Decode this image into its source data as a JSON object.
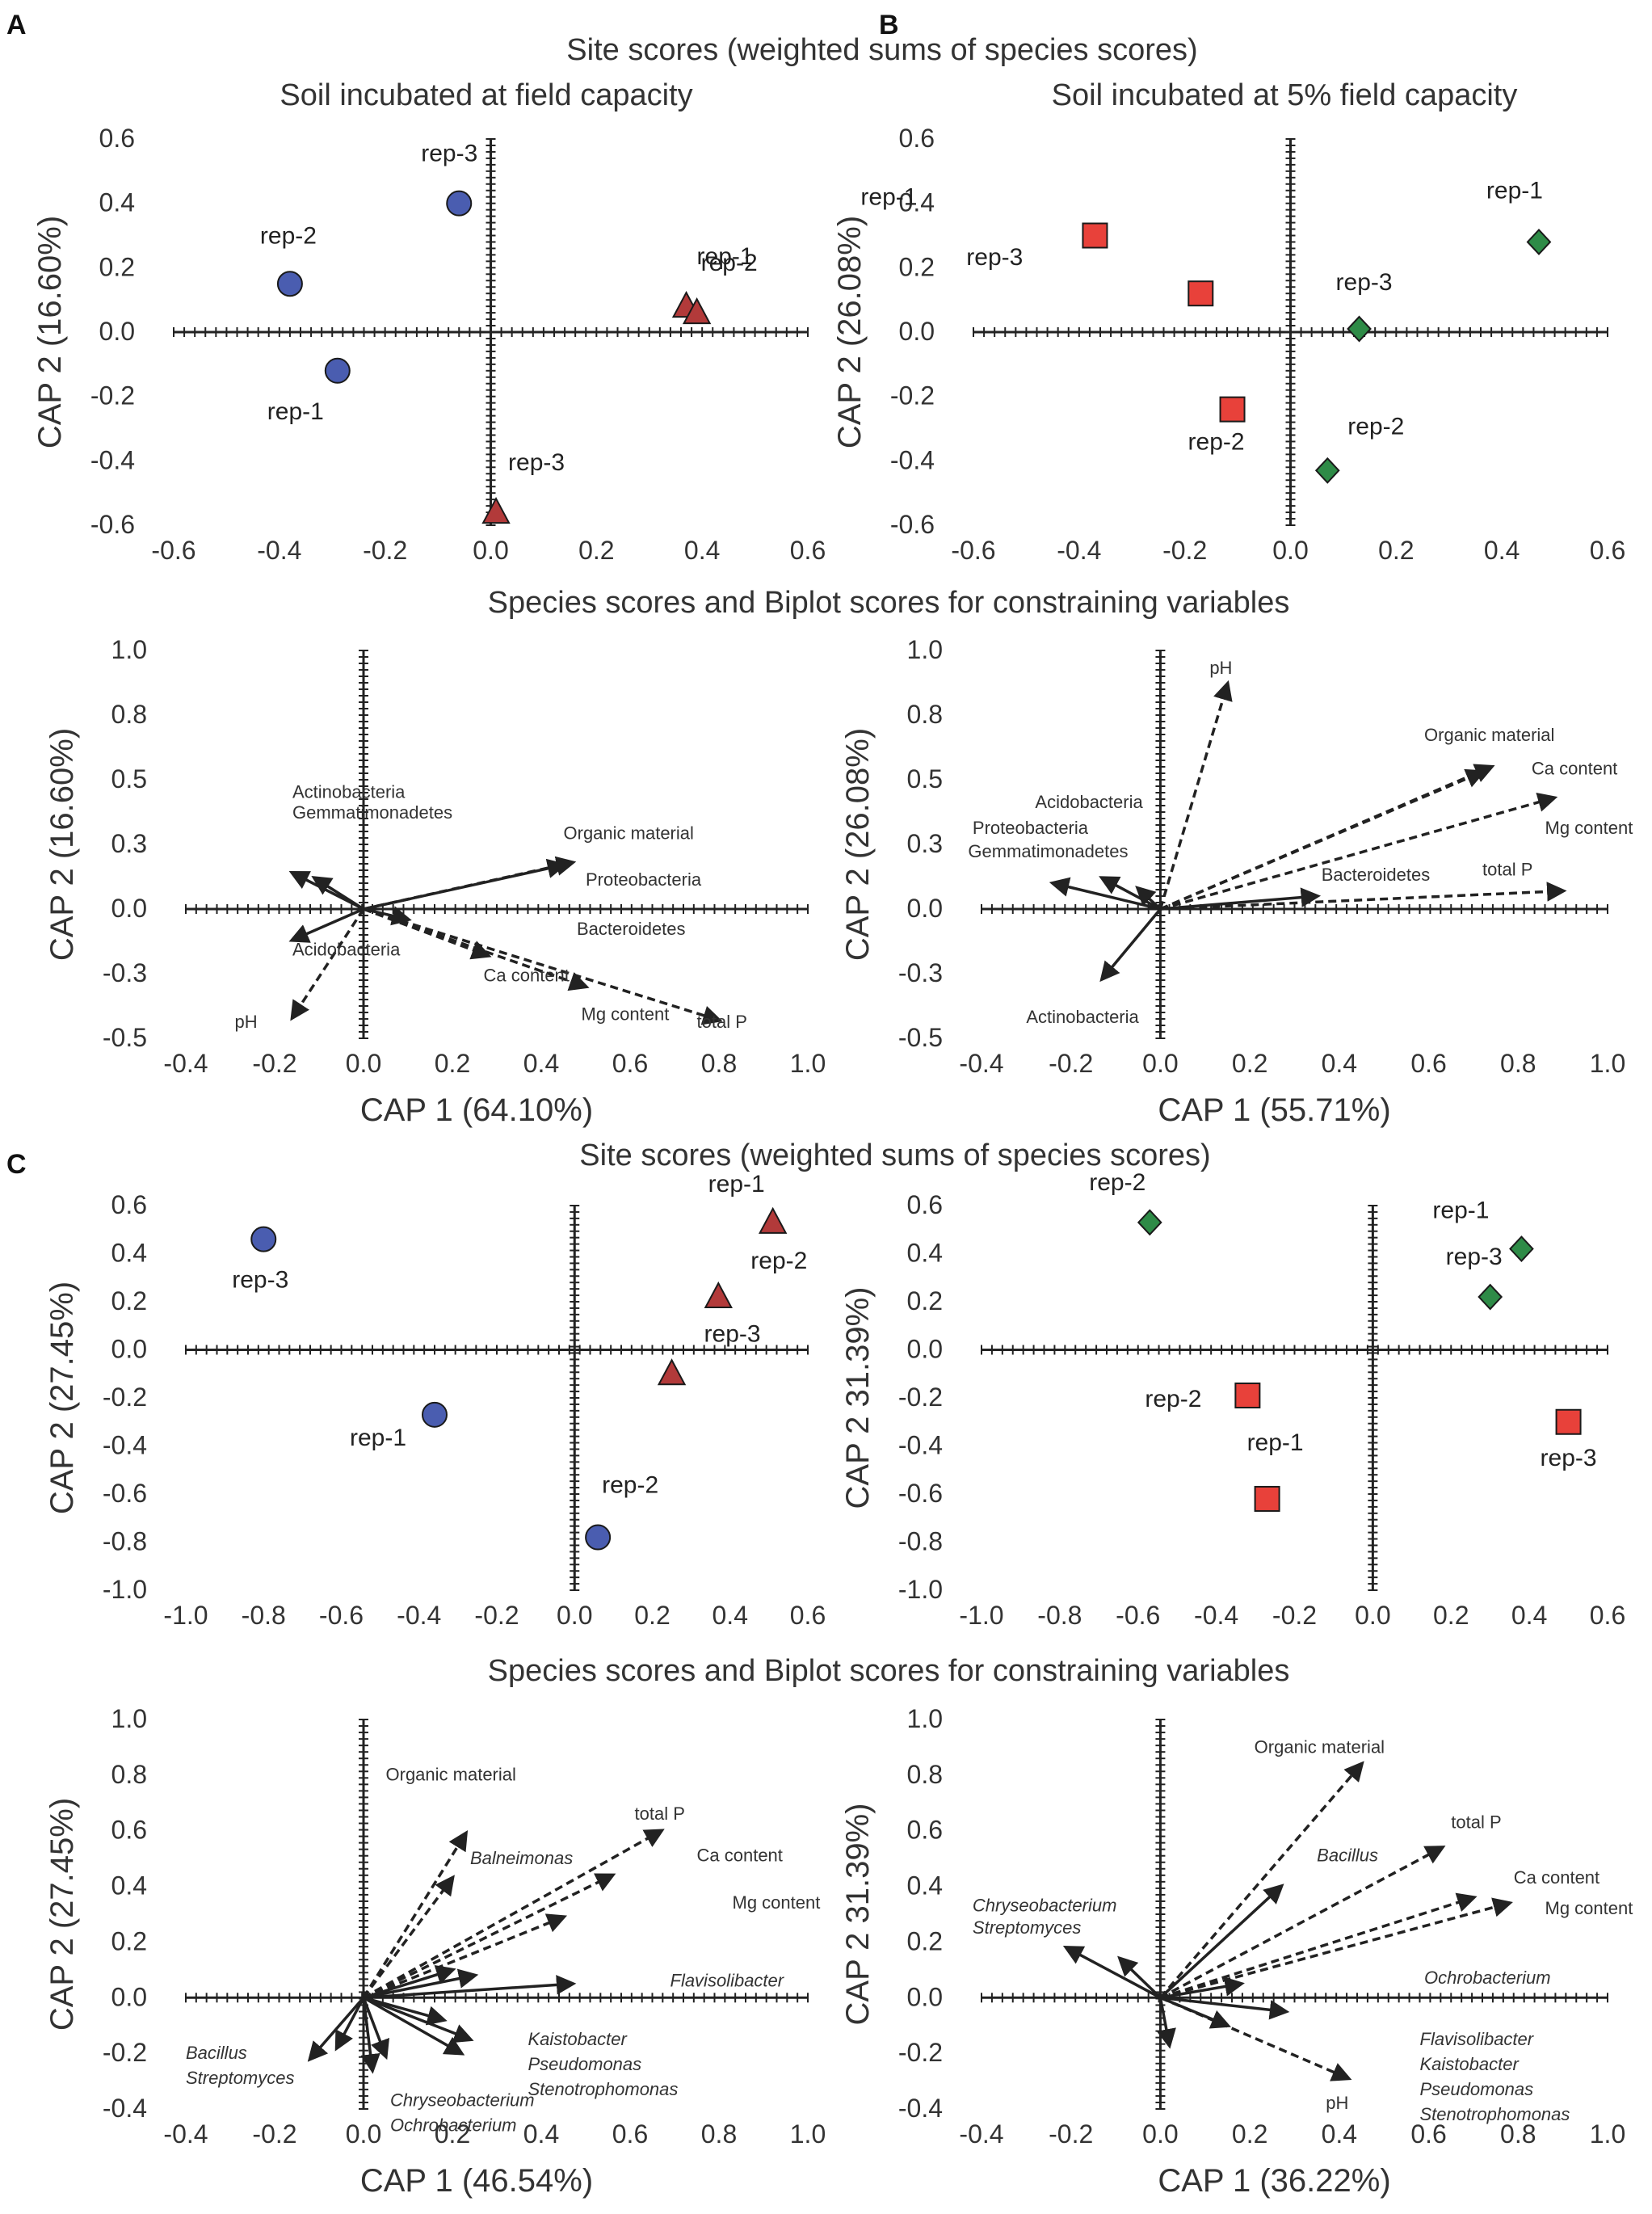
{
  "panel_labels": [
    "A",
    "B",
    "C"
  ],
  "headings": {
    "site_scores_ab": "Site scores (weighted sums of species scores)",
    "site_scores_c": "Site scores (weighted sums of species scores)",
    "species_ab": "Species scores and Biplot scores for constraining variables",
    "species_c": "Species scores and Biplot scores for constraining variables",
    "sub_a": "Soil incubated at field capacity",
    "sub_b": "Soil incubated at 5% field capacity"
  },
  "colors": {
    "circle": "#4a5db0",
    "triangle": "#b23a3a",
    "square": "#e8413a",
    "diamond": "#2e8b47",
    "axis": "#222222",
    "arrow": "#222222"
  },
  "chart_data": [
    {
      "id": "A-site",
      "type": "scatter",
      "xlim": [
        -0.6,
        0.6
      ],
      "ylim": [
        -0.6,
        0.6
      ],
      "xticks": [
        "-0.6",
        "-0.4",
        "-0.2",
        "0.0",
        "0.2",
        "0.4",
        "0.6"
      ],
      "yticks": [
        "0.6",
        "0.4",
        "0.2",
        "0.0",
        "-0.2",
        "-0.4",
        "-0.6"
      ],
      "ylabel": "CAP 2 (16.60%)",
      "xlabel": "",
      "series": [
        {
          "name": "blue",
          "marker": "circle",
          "points": [
            {
              "x": -0.38,
              "y": 0.15,
              "label": "rep-2"
            },
            {
              "x": -0.06,
              "y": 0.4,
              "label": "rep-3"
            },
            {
              "x": -0.29,
              "y": -0.12,
              "label": "rep-1"
            }
          ]
        },
        {
          "name": "red",
          "marker": "triangle",
          "points": [
            {
              "x": 0.37,
              "y": 0.08,
              "label": "rep-1"
            },
            {
              "x": 0.39,
              "y": 0.06,
              "label": "rep-2"
            },
            {
              "x": 0.01,
              "y": -0.56,
              "label": "rep-3"
            }
          ]
        }
      ]
    },
    {
      "id": "B-site",
      "type": "scatter",
      "xlim": [
        -0.6,
        0.6
      ],
      "ylim": [
        -0.6,
        0.6
      ],
      "xticks": [
        "-0.6",
        "-0.4",
        "-0.2",
        "0.0",
        "0.2",
        "0.4",
        "0.6"
      ],
      "yticks": [
        "0.6",
        "0.4",
        "0.2",
        "0.0",
        "-0.2",
        "-0.4",
        "-0.6"
      ],
      "ylabel": "CAP 2 (26.08%)",
      "xlabel": "",
      "series": [
        {
          "name": "red",
          "marker": "square",
          "points": [
            {
              "x": -0.37,
              "y": 0.3,
              "label": "rep-1"
            },
            {
              "x": -0.17,
              "y": 0.12,
              "label": "rep-3"
            },
            {
              "x": -0.11,
              "y": -0.24,
              "label": "rep-2"
            }
          ]
        },
        {
          "name": "green",
          "marker": "diamond",
          "points": [
            {
              "x": 0.47,
              "y": 0.28,
              "label": "rep-1"
            },
            {
              "x": 0.13,
              "y": 0.01,
              "label": "rep-3"
            },
            {
              "x": 0.07,
              "y": -0.43,
              "label": "rep-2"
            }
          ]
        }
      ]
    },
    {
      "id": "A-bip",
      "type": "biplot",
      "xlim": [
        -0.4,
        1.0
      ],
      "ylim": [
        -0.5,
        1.0
      ],
      "xticks": [
        "-0.4",
        "-0.2",
        "0.0",
        "0.2",
        "0.4",
        "0.6",
        "0.8",
        "1.0"
      ],
      "yticks": [
        "1.0",
        "0.8",
        "0.5",
        "0.3",
        "0.0",
        "-0.3",
        "-0.5"
      ],
      "ylabel": "CAP 2 (16.60%)",
      "xlabel": "CAP 1 (64.10%)",
      "vectors": [
        {
          "x": 0.47,
          "y": 0.18,
          "dash": true
        },
        {
          "x": 0.45,
          "y": 0.17,
          "dash": false
        },
        {
          "x": 0.8,
          "y": -0.43,
          "dash": true
        },
        {
          "x": 0.5,
          "y": -0.3,
          "dash": true
        },
        {
          "x": 0.28,
          "y": -0.18,
          "dash": true
        },
        {
          "x": 0.1,
          "y": -0.04,
          "dash": false
        },
        {
          "x": -0.16,
          "y": 0.14,
          "dash": false
        },
        {
          "x": -0.11,
          "y": 0.12,
          "dash": false
        },
        {
          "x": -0.16,
          "y": -0.12,
          "dash": false
        },
        {
          "x": -0.16,
          "y": -0.42,
          "dash": true
        }
      ],
      "labels": [
        {
          "x": 0.45,
          "y": 0.27,
          "text": "Organic material",
          "italic": false
        },
        {
          "x": 0.5,
          "y": 0.09,
          "text": "Proteobacteria",
          "italic": false
        },
        {
          "x": 0.48,
          "y": -0.1,
          "text": "Bacteroidetes",
          "italic": false
        },
        {
          "x": 0.27,
          "y": -0.28,
          "text": "Ca content",
          "italic": false
        },
        {
          "x": 0.49,
          "y": -0.43,
          "text": "Mg content",
          "italic": false
        },
        {
          "x": 0.75,
          "y": -0.46,
          "text": "total P",
          "italic": false
        },
        {
          "x": -0.16,
          "y": 0.43,
          "text": "Actinobacteria",
          "italic": false
        },
        {
          "x": -0.16,
          "y": 0.35,
          "text": "Gemmatimonadetes",
          "italic": false
        },
        {
          "x": -0.16,
          "y": -0.18,
          "text": "Acidobacteria",
          "italic": false
        },
        {
          "x": -0.29,
          "y": -0.46,
          "text": "pH",
          "italic": false
        }
      ]
    },
    {
      "id": "B-bip",
      "type": "biplot",
      "xlim": [
        -0.4,
        1.0
      ],
      "ylim": [
        -0.5,
        1.0
      ],
      "xticks": [
        "-0.4",
        "-0.2",
        "0.0",
        "0.2",
        "0.4",
        "0.6",
        "0.8",
        "1.0"
      ],
      "yticks": [
        "1.0",
        "0.8",
        "0.5",
        "0.3",
        "0.0",
        "-0.3",
        "-0.5"
      ],
      "ylabel": "CAP 2 (26.08%)",
      "xlabel": "CAP 1 (55.71%)",
      "vectors": [
        {
          "x": 0.15,
          "y": 0.87,
          "dash": true
        },
        {
          "x": 0.74,
          "y": 0.55,
          "dash": true
        },
        {
          "x": 0.72,
          "y": 0.53,
          "dash": true
        },
        {
          "x": 0.88,
          "y": 0.43,
          "dash": true
        },
        {
          "x": 0.9,
          "y": 0.07,
          "dash": true
        },
        {
          "x": 0.35,
          "y": 0.05,
          "dash": false
        },
        {
          "x": -0.24,
          "y": 0.1,
          "dash": false
        },
        {
          "x": -0.13,
          "y": 0.12,
          "dash": false
        },
        {
          "x": -0.05,
          "y": 0.08,
          "dash": false
        },
        {
          "x": -0.13,
          "y": -0.27,
          "dash": false
        }
      ],
      "labels": [
        {
          "x": 0.11,
          "y": 0.91,
          "text": "pH",
          "italic": false
        },
        {
          "x": 0.59,
          "y": 0.65,
          "text": "Organic material",
          "italic": false
        },
        {
          "x": 0.83,
          "y": 0.52,
          "text": "Ca content",
          "italic": false
        },
        {
          "x": 0.86,
          "y": 0.29,
          "text": "Mg content",
          "italic": false
        },
        {
          "x": 0.72,
          "y": 0.13,
          "text": "total P",
          "italic": false
        },
        {
          "x": 0.36,
          "y": 0.11,
          "text": "Bacteroidetes",
          "italic": false
        },
        {
          "x": -0.28,
          "y": 0.39,
          "text": "Acidobacteria",
          "italic": false
        },
        {
          "x": -0.42,
          "y": 0.29,
          "text": "Proteobacteria",
          "italic": false
        },
        {
          "x": -0.43,
          "y": 0.2,
          "text": "Gemmatimonadetes",
          "italic": false
        },
        {
          "x": -0.3,
          "y": -0.44,
          "text": "Actinobacteria",
          "italic": false
        }
      ]
    },
    {
      "id": "C-site-left",
      "type": "scatter",
      "xlim": [
        -1.0,
        0.6
      ],
      "ylim": [
        -1.0,
        0.6
      ],
      "xticks": [
        "-1.0",
        "-0.8",
        "-0.6",
        "-0.4",
        "-0.2",
        "0.0",
        "0.2",
        "0.4",
        "0.6"
      ],
      "yticks": [
        "0.6",
        "0.4",
        "0.2",
        "0.0",
        "-0.2",
        "-0.4",
        "-0.6",
        "-0.8",
        "-1.0"
      ],
      "ylabel": "CAP 2 (27.45%)",
      "xlabel": "",
      "series": [
        {
          "name": "blue",
          "marker": "circle",
          "points": [
            {
              "x": -0.8,
              "y": 0.46,
              "label": "rep-3"
            },
            {
              "x": -0.36,
              "y": -0.27,
              "label": "rep-1"
            },
            {
              "x": 0.06,
              "y": -0.78,
              "label": "rep-2"
            }
          ]
        },
        {
          "name": "red",
          "marker": "triangle",
          "points": [
            {
              "x": 0.51,
              "y": 0.53,
              "label": "rep-1"
            },
            {
              "x": 0.37,
              "y": 0.22,
              "label": "rep-2"
            },
            {
              "x": 0.25,
              "y": -0.1,
              "label": "rep-3"
            }
          ]
        }
      ]
    },
    {
      "id": "C-site-right",
      "type": "scatter",
      "xlim": [
        -1.0,
        0.6
      ],
      "ylim": [
        -1.0,
        0.6
      ],
      "xticks": [
        "-1.0",
        "-0.8",
        "-0.6",
        "-0.4",
        "-0.2",
        "0.0",
        "0.2",
        "0.4",
        "0.6"
      ],
      "yticks": [
        "0.6",
        "0.4",
        "0.2",
        "0.0",
        "-0.2",
        "-0.4",
        "-0.6",
        "-0.8",
        "-1.0"
      ],
      "ylabel": "CAP 2 31.39%)",
      "xlabel": "",
      "series": [
        {
          "name": "green",
          "marker": "diamond",
          "points": [
            {
              "x": -0.57,
              "y": 0.53,
              "label": "rep-2"
            },
            {
              "x": 0.38,
              "y": 0.42,
              "label": "rep-1"
            },
            {
              "x": 0.3,
              "y": 0.22,
              "label": "rep-3"
            }
          ]
        },
        {
          "name": "red",
          "marker": "square",
          "points": [
            {
              "x": -0.32,
              "y": -0.19,
              "label": "rep-2"
            },
            {
              "x": 0.5,
              "y": -0.3,
              "label": "rep-3"
            },
            {
              "x": -0.27,
              "y": -0.62,
              "label": "rep-1"
            }
          ]
        }
      ]
    },
    {
      "id": "C-bip-left",
      "type": "biplot",
      "xlim": [
        -0.4,
        1.0
      ],
      "ylim": [
        -0.4,
        1.0
      ],
      "xticks": [
        "-0.4",
        "-0.2",
        "0.0",
        "0.2",
        "0.4",
        "0.6",
        "0.8",
        "1.0"
      ],
      "yticks": [
        "1.0",
        "0.8",
        "0.6",
        "0.4",
        "0.2",
        "0.0",
        "-0.2",
        "-0.4"
      ],
      "ylabel": "CAP 2 (27.45%)",
      "xlabel": "CAP 1 (46.54%)",
      "vectors": [
        {
          "x": 0.23,
          "y": 0.59,
          "dash": true
        },
        {
          "x": 0.67,
          "y": 0.6,
          "dash": true
        },
        {
          "x": 0.56,
          "y": 0.44,
          "dash": true
        },
        {
          "x": 0.45,
          "y": 0.29,
          "dash": true
        },
        {
          "x": 0.2,
          "y": 0.43,
          "dash": true
        },
        {
          "x": 0.47,
          "y": 0.05,
          "dash": false
        },
        {
          "x": 0.25,
          "y": 0.08,
          "dash": false
        },
        {
          "x": 0.2,
          "y": 0.1,
          "dash": false
        },
        {
          "x": 0.18,
          "y": -0.08,
          "dash": false
        },
        {
          "x": 0.24,
          "y": -0.15,
          "dash": false
        },
        {
          "x": 0.22,
          "y": -0.2,
          "dash": false
        },
        {
          "x": 0.05,
          "y": -0.21,
          "dash": false
        },
        {
          "x": 0.02,
          "y": -0.26,
          "dash": false
        },
        {
          "x": -0.12,
          "y": -0.22,
          "dash": false
        },
        {
          "x": -0.06,
          "y": -0.18,
          "dash": false
        }
      ],
      "labels": [
        {
          "x": 0.05,
          "y": 0.78,
          "text": "Organic material",
          "italic": false
        },
        {
          "x": 0.61,
          "y": 0.64,
          "text": "total P",
          "italic": false
        },
        {
          "x": 0.75,
          "y": 0.49,
          "text": "Ca content",
          "italic": false
        },
        {
          "x": 0.83,
          "y": 0.32,
          "text": "Mg content",
          "italic": false
        },
        {
          "x": 0.24,
          "y": 0.48,
          "text": "Balneimonas",
          "italic": true
        },
        {
          "x": 0.69,
          "y": 0.04,
          "text": "Flavisolibacter",
          "italic": true
        },
        {
          "x": 0.37,
          "y": -0.17,
          "text": "Kaistobacter",
          "italic": true
        },
        {
          "x": 0.37,
          "y": -0.26,
          "text": "Pseudomonas",
          "italic": true
        },
        {
          "x": 0.37,
          "y": -0.35,
          "text": "Stenotrophomonas",
          "italic": true
        },
        {
          "x": -0.4,
          "y": -0.22,
          "text": "Bacillus",
          "italic": true
        },
        {
          "x": -0.4,
          "y": -0.31,
          "text": "Streptomyces",
          "italic": true
        },
        {
          "x": 0.06,
          "y": -0.39,
          "text": "Chryseobacterium",
          "italic": true
        },
        {
          "x": 0.06,
          "y": -0.48,
          "text": "Ochrobacterium",
          "italic": true
        }
      ]
    },
    {
      "id": "C-bip-right",
      "type": "biplot",
      "xlim": [
        -0.4,
        1.0
      ],
      "ylim": [
        -0.4,
        1.0
      ],
      "xticks": [
        "-0.4",
        "-0.2",
        "0.0",
        "0.2",
        "0.4",
        "0.6",
        "0.8",
        "1.0"
      ],
      "yticks": [
        "1.0",
        "0.8",
        "0.6",
        "0.4",
        "0.2",
        "0.0",
        "-0.2",
        "-0.4"
      ],
      "ylabel": "CAP 2 31.39%)",
      "xlabel": "CAP 1 (36.22%)",
      "vectors": [
        {
          "x": 0.45,
          "y": 0.84,
          "dash": true
        },
        {
          "x": 0.63,
          "y": 0.54,
          "dash": true
        },
        {
          "x": 0.7,
          "y": 0.36,
          "dash": true
        },
        {
          "x": 0.78,
          "y": 0.34,
          "dash": true
        },
        {
          "x": 0.27,
          "y": 0.4,
          "dash": false
        },
        {
          "x": 0.42,
          "y": -0.29,
          "dash": true
        },
        {
          "x": 0.28,
          "y": -0.05,
          "dash": false
        },
        {
          "x": 0.18,
          "y": 0.05,
          "dash": false
        },
        {
          "x": 0.15,
          "y": -0.1,
          "dash": false
        },
        {
          "x": -0.21,
          "y": 0.18,
          "dash": false
        },
        {
          "x": -0.09,
          "y": 0.14,
          "dash": false
        },
        {
          "x": 0.02,
          "y": -0.17,
          "dash": false
        }
      ],
      "labels": [
        {
          "x": 0.21,
          "y": 0.88,
          "text": "Organic material",
          "italic": false
        },
        {
          "x": 0.65,
          "y": 0.61,
          "text": "total P",
          "italic": false
        },
        {
          "x": 0.79,
          "y": 0.41,
          "text": "Ca content",
          "italic": false
        },
        {
          "x": 0.86,
          "y": 0.3,
          "text": "Mg content",
          "italic": false
        },
        {
          "x": 0.35,
          "y": 0.49,
          "text": "Bacillus",
          "italic": true
        },
        {
          "x": 0.59,
          "y": 0.05,
          "text": "Ochrobacterium",
          "italic": true
        },
        {
          "x": 0.58,
          "y": -0.17,
          "text": "Flavisolibacter",
          "italic": true
        },
        {
          "x": 0.58,
          "y": -0.26,
          "text": "Kaistobacter",
          "italic": true
        },
        {
          "x": 0.58,
          "y": -0.35,
          "text": "Pseudomonas",
          "italic": true
        },
        {
          "x": 0.58,
          "y": -0.44,
          "text": "Stenotrophomonas",
          "italic": true
        },
        {
          "x": -0.42,
          "y": 0.31,
          "text": "Chryseobacterium",
          "italic": true
        },
        {
          "x": -0.42,
          "y": 0.23,
          "text": "Streptomyces",
          "italic": true
        },
        {
          "x": 0.37,
          "y": -0.4,
          "text": "pH",
          "italic": false
        }
      ]
    }
  ]
}
